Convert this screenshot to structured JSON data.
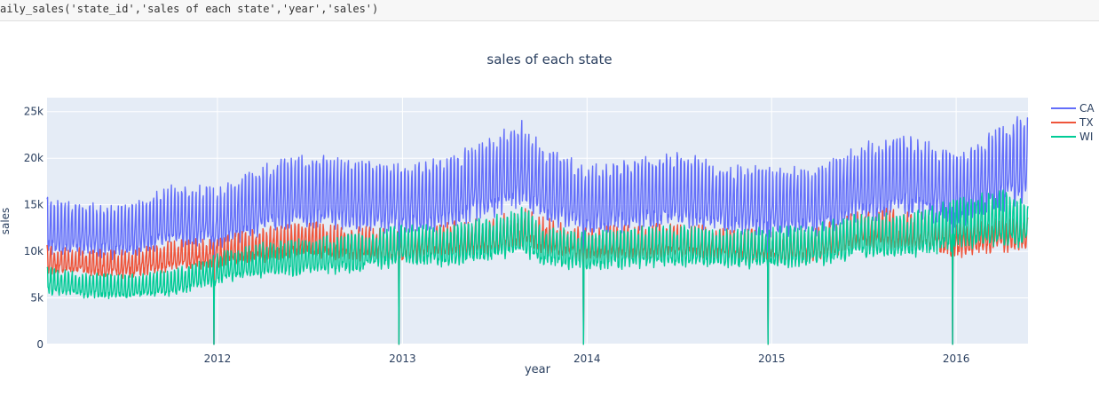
{
  "code_cell": {
    "text": "aily_sales('state_id','sales of each state','year','sales')"
  },
  "colors": {
    "plot_bg": "#e5ecf6",
    "grid": "#ffffff",
    "text": "#2a3f5f",
    "CA": "#636efa",
    "TX": "#ef553b",
    "WI": "#00cc96"
  },
  "chart_data": {
    "type": "line",
    "title": "sales of each state",
    "xlabel": "year",
    "ylabel": "sales",
    "x_ticks": [
      "2012",
      "2013",
      "2014",
      "2015",
      "2016"
    ],
    "y_ticks": [
      "0",
      "5k",
      "10k",
      "15k",
      "20k",
      "25k"
    ],
    "ylim": [
      0,
      26500
    ],
    "xlim": [
      "2011-01-29",
      "2016-05-22"
    ],
    "legend_position": "top-right",
    "grid": true,
    "series": [
      {
        "name": "CA",
        "x": [
          "2011-01-29",
          "2011-04-01",
          "2011-07-01",
          "2011-10-01",
          "2012-01-01",
          "2012-04-01",
          "2012-07-01",
          "2012-10-01",
          "2013-01-01",
          "2013-04-01",
          "2013-07-01",
          "2013-09-01",
          "2013-10-01",
          "2014-01-01",
          "2014-04-01",
          "2014-07-01",
          "2014-10-01",
          "2015-01-01",
          "2015-04-01",
          "2015-07-01",
          "2015-10-01",
          "2016-01-01",
          "2016-04-01",
          "2016-05-22"
        ],
        "values": [
          12300,
          12000,
          11600,
          13400,
          13200,
          15000,
          16100,
          15600,
          15100,
          15600,
          17500,
          18800,
          16800,
          14900,
          15600,
          16200,
          15100,
          14800,
          14900,
          16900,
          17600,
          16000,
          18300,
          19600
        ]
      },
      {
        "name": "TX",
        "x": [
          "2011-01-29",
          "2011-04-01",
          "2011-07-01",
          "2011-10-01",
          "2012-01-01",
          "2012-04-01",
          "2012-07-01",
          "2012-10-01",
          "2013-01-01",
          "2013-04-01",
          "2013-07-01",
          "2013-09-01",
          "2013-10-01",
          "2014-01-01",
          "2014-04-01",
          "2014-07-01",
          "2014-10-01",
          "2015-01-01",
          "2015-04-01",
          "2015-07-01",
          "2015-10-01",
          "2016-01-01",
          "2016-04-01",
          "2016-05-22"
        ],
        "values": [
          9000,
          8700,
          8400,
          9300,
          9800,
          10500,
          11000,
          10600,
          10400,
          11000,
          11400,
          12300,
          11500,
          10500,
          10700,
          10900,
          10500,
          10200,
          10500,
          12100,
          12200,
          11000,
          11700,
          12000
        ]
      },
      {
        "name": "WI",
        "x": [
          "2011-01-29",
          "2011-04-01",
          "2011-07-01",
          "2011-10-01",
          "2012-01-01",
          "2012-04-01",
          "2012-07-01",
          "2012-10-01",
          "2013-01-01",
          "2013-04-01",
          "2013-07-01",
          "2013-09-01",
          "2013-10-01",
          "2014-01-01",
          "2014-04-01",
          "2014-07-01",
          "2014-10-01",
          "2015-01-01",
          "2015-04-01",
          "2015-07-01",
          "2015-10-01",
          "2016-01-01",
          "2016-04-01",
          "2016-05-22"
        ],
        "values": [
          6700,
          6200,
          6000,
          6400,
          7900,
          8900,
          9100,
          9600,
          10400,
          10300,
          11100,
          11800,
          10300,
          9800,
          10100,
          10300,
          10000,
          10100,
          10400,
          11400,
          11300,
          12600,
          13200,
          12700
        ]
      }
    ]
  }
}
